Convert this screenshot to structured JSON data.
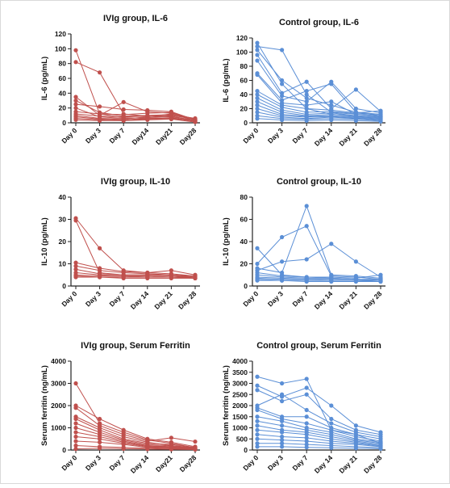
{
  "colors": {
    "ivig": "#c0504d",
    "control": "#5b8fd6",
    "axis": "#222222"
  },
  "chart_data": [
    {
      "type": "line",
      "title": "IVIg group, IL-6",
      "ylabel": "IL-6 (pg/mL)",
      "xlabel": "",
      "categories": [
        "Day 0",
        "Day 3",
        "Day 7",
        "Day14",
        "Day21",
        "Day28"
      ],
      "ylim": [
        0,
        120
      ],
      "yticks": [
        0,
        20,
        40,
        60,
        80,
        100,
        120
      ],
      "color": "ivig",
      "series": [
        {
          "values": [
            98,
            12,
            7,
            6,
            5,
            4
          ]
        },
        {
          "values": [
            82,
            68,
            12,
            9,
            8,
            3
          ]
        },
        {
          "values": [
            35,
            10,
            28,
            15,
            13,
            5
          ]
        },
        {
          "values": [
            30,
            14,
            9,
            10,
            11,
            6
          ]
        },
        {
          "values": [
            25,
            22,
            18,
            17,
            15,
            4
          ]
        },
        {
          "values": [
            20,
            8,
            6,
            7,
            9,
            3
          ]
        },
        {
          "values": [
            15,
            12,
            11,
            13,
            14,
            4
          ]
        },
        {
          "values": [
            12,
            9,
            8,
            9,
            10,
            5
          ]
        },
        {
          "values": [
            10,
            6,
            5,
            8,
            12,
            3
          ]
        },
        {
          "values": [
            8,
            5,
            4,
            6,
            7,
            2
          ]
        },
        {
          "values": [
            6,
            4,
            3,
            5,
            6,
            2
          ]
        },
        {
          "values": [
            4,
            3,
            3,
            4,
            5,
            1
          ]
        }
      ]
    },
    {
      "type": "line",
      "title": "Control group, IL-6",
      "ylabel": "IL-6 (pg/mL)",
      "xlabel": "",
      "categories": [
        "Day 0",
        "Day 3",
        "Day 7",
        "Day 14",
        "Day 21",
        "Day 28"
      ],
      "ylim": [
        0,
        120
      ],
      "yticks": [
        0,
        20,
        40,
        60,
        80,
        100,
        120
      ],
      "color": "control",
      "series": [
        {
          "values": [
            113,
            55,
            20,
            12,
            10,
            8
          ]
        },
        {
          "values": [
            108,
            103,
            40,
            15,
            12,
            10
          ]
        },
        {
          "values": [
            103,
            60,
            35,
            25,
            15,
            12
          ]
        },
        {
          "values": [
            96,
            42,
            58,
            20,
            47,
            16
          ]
        },
        {
          "values": [
            88,
            38,
            30,
            58,
            20,
            14
          ]
        },
        {
          "values": [
            70,
            32,
            45,
            55,
            15,
            10
          ]
        },
        {
          "values": [
            68,
            28,
            25,
            30,
            12,
            9
          ]
        },
        {
          "values": [
            45,
            25,
            20,
            18,
            14,
            17
          ]
        },
        {
          "values": [
            40,
            22,
            15,
            16,
            13,
            12
          ]
        },
        {
          "values": [
            35,
            18,
            12,
            14,
            10,
            8
          ]
        },
        {
          "values": [
            30,
            15,
            10,
            12,
            9,
            7
          ]
        },
        {
          "values": [
            25,
            12,
            9,
            10,
            8,
            6
          ]
        },
        {
          "values": [
            20,
            10,
            8,
            9,
            7,
            5
          ]
        },
        {
          "values": [
            15,
            8,
            6,
            8,
            6,
            4
          ]
        },
        {
          "values": [
            10,
            6,
            5,
            6,
            5,
            3
          ]
        },
        {
          "values": [
            6,
            4,
            3,
            4,
            3,
            2
          ]
        }
      ]
    },
    {
      "type": "line",
      "title": "IVIg group, IL-10",
      "ylabel": "IL-10 (pg/mL)",
      "xlabel": "",
      "categories": [
        "Day 0",
        "Day 3",
        "Day 7",
        "Day 14",
        "Day 21",
        "Day 28"
      ],
      "ylim": [
        0,
        40
      ],
      "yticks": [
        0,
        10,
        20,
        30,
        40
      ],
      "color": "ivig",
      "series": [
        {
          "values": [
            30.5,
            17,
            7,
            6,
            5.5,
            4.5
          ]
        },
        {
          "values": [
            29.5,
            6,
            5,
            5,
            5,
            4
          ]
        },
        {
          "values": [
            10.5,
            8,
            6.5,
            6,
            7,
            5
          ]
        },
        {
          "values": [
            9,
            7,
            6,
            5.5,
            5,
            4.5
          ]
        },
        {
          "values": [
            7.5,
            5.5,
            5,
            5,
            4.5,
            4
          ]
        },
        {
          "values": [
            6,
            5,
            4.5,
            4.5,
            4,
            4
          ]
        },
        {
          "values": [
            5,
            4.5,
            4.5,
            4,
            4,
            3.5
          ]
        },
        {
          "values": [
            4.5,
            4,
            4,
            4,
            4,
            3.5
          ]
        },
        {
          "values": [
            4,
            4,
            3.5,
            3.5,
            3.5,
            3.5
          ]
        }
      ]
    },
    {
      "type": "line",
      "title": "Control group, IL-10",
      "ylabel": "IL-10 (pg/mL)",
      "xlabel": "",
      "categories": [
        "Day 0",
        "Day 3",
        "Day 7",
        "Day 14",
        "Day 21",
        "Day 28"
      ],
      "ylim": [
        0,
        80
      ],
      "yticks": [
        0,
        20,
        40,
        60,
        80
      ],
      "color": "control",
      "series": [
        {
          "values": [
            34,
            10,
            8,
            7,
            6,
            5
          ]
        },
        {
          "values": [
            20,
            44,
            54,
            9,
            8,
            6
          ]
        },
        {
          "values": [
            16,
            12,
            72,
            10,
            9,
            7
          ]
        },
        {
          "values": [
            14,
            22,
            24,
            38,
            22,
            8
          ]
        },
        {
          "values": [
            12,
            9,
            8,
            8,
            7,
            10
          ]
        },
        {
          "values": [
            10,
            8,
            7,
            7,
            6,
            6
          ]
        },
        {
          "values": [
            8,
            7,
            6,
            6,
            6,
            5
          ]
        },
        {
          "values": [
            7,
            6,
            6,
            5,
            5,
            5
          ]
        },
        {
          "values": [
            6,
            5,
            5,
            5,
            5,
            4
          ]
        },
        {
          "values": [
            5,
            5,
            4,
            4,
            4,
            4
          ]
        }
      ]
    },
    {
      "type": "line",
      "title": "IVIg group, Serum Ferritin",
      "ylabel": "Serum ferritin (ng/mL)",
      "xlabel": "",
      "categories": [
        "Day 0",
        "Day 3",
        "Day 7",
        "Day 14",
        "Day21",
        "Day28"
      ],
      "ylim": [
        0,
        4000
      ],
      "yticks": [
        0,
        1000,
        2000,
        3000,
        4000
      ],
      "color": "ivig",
      "series": [
        {
          "values": [
            3000,
            1200,
            800,
            450,
            300,
            100
          ]
        },
        {
          "values": [
            2000,
            1400,
            900,
            500,
            350,
            150
          ]
        },
        {
          "values": [
            1900,
            1100,
            700,
            400,
            550,
            380
          ]
        },
        {
          "values": [
            1500,
            1000,
            600,
            350,
            200,
            100
          ]
        },
        {
          "values": [
            1400,
            900,
            500,
            300,
            250,
            120
          ]
        },
        {
          "values": [
            1200,
            800,
            450,
            250,
            180,
            90
          ]
        },
        {
          "values": [
            1000,
            700,
            400,
            200,
            150,
            80
          ]
        },
        {
          "values": [
            800,
            600,
            350,
            180,
            120,
            70
          ]
        },
        {
          "values": [
            600,
            500,
            300,
            150,
            100,
            60
          ]
        },
        {
          "values": [
            400,
            350,
            250,
            120,
            90,
            50
          ]
        },
        {
          "values": [
            200,
            150,
            120,
            80,
            60,
            40
          ]
        },
        {
          "values": [
            50,
            80,
            60,
            40,
            30,
            20
          ]
        }
      ]
    },
    {
      "type": "line",
      "title": "Control group, Serum Ferritin",
      "ylabel": "Serum ferritin (ng/mL)",
      "xlabel": "",
      "categories": [
        "Day 0",
        "Day 3",
        "Day 7",
        "Day 14",
        "Day 21",
        "Day 28"
      ],
      "ylim": [
        0,
        4000
      ],
      "yticks": [
        0,
        500,
        1000,
        1500,
        2000,
        2500,
        3000,
        3500,
        4000
      ],
      "color": "control",
      "series": [
        {
          "values": [
            3300,
            3000,
            3200,
            900,
            700,
            300
          ]
        },
        {
          "values": [
            2900,
            2400,
            2800,
            2000,
            1100,
            800
          ]
        },
        {
          "values": [
            2700,
            2200,
            2500,
            1400,
            900,
            700
          ]
        },
        {
          "values": [
            2000,
            2500,
            1800,
            1200,
            800,
            600
          ]
        },
        {
          "values": [
            1900,
            1500,
            1500,
            1000,
            700,
            500
          ]
        },
        {
          "values": [
            1800,
            1400,
            1200,
            900,
            600,
            400
          ]
        },
        {
          "values": [
            1500,
            1300,
            1000,
            800,
            500,
            350
          ]
        },
        {
          "values": [
            1300,
            1100,
            900,
            700,
            450,
            300
          ]
        },
        {
          "values": [
            1100,
            900,
            800,
            600,
            400,
            250
          ]
        },
        {
          "values": [
            900,
            800,
            700,
            500,
            350,
            200
          ]
        },
        {
          "values": [
            700,
            600,
            550,
            400,
            300,
            180
          ]
        },
        {
          "values": [
            500,
            450,
            400,
            300,
            250,
            150
          ]
        },
        {
          "values": [
            300,
            300,
            250,
            200,
            150,
            100
          ]
        },
        {
          "values": [
            150,
            150,
            120,
            100,
            80,
            60
          ]
        }
      ]
    }
  ]
}
